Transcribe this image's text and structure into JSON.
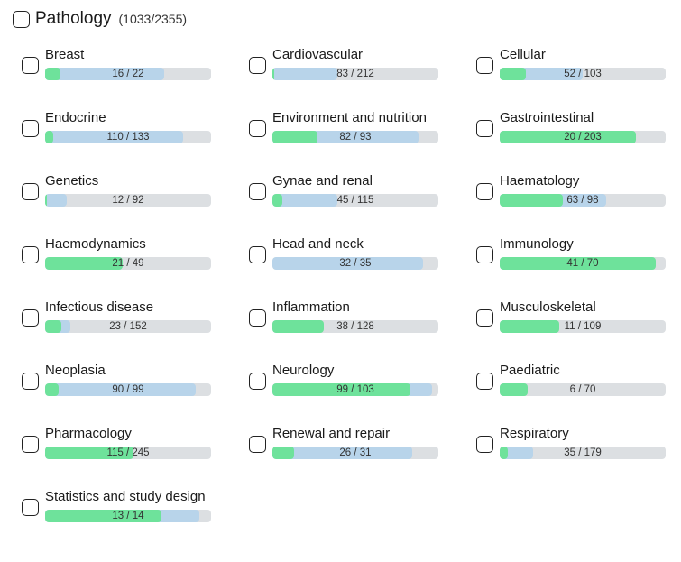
{
  "header": {
    "title": "Pathology",
    "count": "(1033/2355)"
  },
  "items": [
    {
      "label": "Breast",
      "score": "16 / 22",
      "green": 0.09,
      "blue": 0.72
    },
    {
      "label": "Cardiovascular",
      "score": "83 / 212",
      "green": 0.01,
      "blue": 0.39
    },
    {
      "label": "Cellular",
      "score": "52 / 103",
      "green": 0.16,
      "blue": 0.5
    },
    {
      "label": "Endocrine",
      "score": "110 / 133",
      "green": 0.05,
      "blue": 0.83
    },
    {
      "label": "Environment and nutrition",
      "score": "82 / 93",
      "green": 0.27,
      "blue": 0.88
    },
    {
      "label": "Gastrointestinal",
      "score": "20 / 203",
      "green": 0.82,
      "blue": 0.1
    },
    {
      "label": "Genetics",
      "score": "12 / 92",
      "green": 0.01,
      "blue": 0.13
    },
    {
      "label": "Gynae and renal",
      "score": "45 / 115",
      "green": 0.06,
      "blue": 0.39
    },
    {
      "label": "Haematology",
      "score": "63 / 98",
      "green": 0.38,
      "blue": 0.64
    },
    {
      "label": "Haemodynamics",
      "score": "21 / 49",
      "green": 0.47,
      "blue": 0.43
    },
    {
      "label": "Head and neck",
      "score": "32 / 35",
      "green": 0.0,
      "blue": 0.91
    },
    {
      "label": "Immunology",
      "score": "41 / 70",
      "green": 0.94,
      "blue": 0.59
    },
    {
      "label": "Infectious disease",
      "score": "23 / 152",
      "green": 0.1,
      "blue": 0.15
    },
    {
      "label": "Inflammation",
      "score": "38 / 128",
      "green": 0.31,
      "blue": 0.3
    },
    {
      "label": "Musculoskeletal",
      "score": "11 / 109",
      "green": 0.36,
      "blue": 0.1
    },
    {
      "label": "Neoplasia",
      "score": "90 / 99",
      "green": 0.08,
      "blue": 0.91
    },
    {
      "label": "Neurology",
      "score": "99 / 103",
      "green": 0.83,
      "blue": 0.96
    },
    {
      "label": "Paediatric",
      "score": "6 / 70",
      "green": 0.17,
      "blue": 0.09
    },
    {
      "label": "Pharmacology",
      "score": "115 / 245",
      "green": 0.53,
      "blue": 0.47
    },
    {
      "label": "Renewal and repair",
      "score": "26 / 31",
      "green": 0.13,
      "blue": 0.84
    },
    {
      "label": "Respiratory",
      "score": "35 / 179",
      "green": 0.05,
      "blue": 0.2
    },
    {
      "label": "Statistics and study design",
      "score": "13 / 14",
      "green": 0.7,
      "blue": 0.93
    }
  ]
}
